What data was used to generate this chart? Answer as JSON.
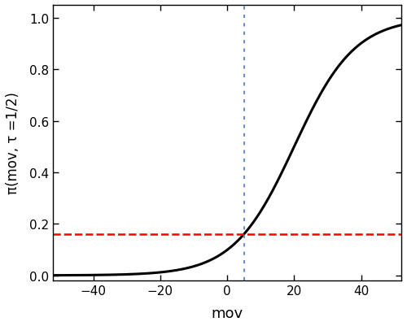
{
  "xlabel": "mov",
  "ylabel": "π(mov, τ =1/2)",
  "xlim": [
    -52,
    52
  ],
  "ylim": [
    -0.02,
    1.05
  ],
  "xticks": [
    -40,
    -20,
    0,
    20,
    40
  ],
  "yticks": [
    0.0,
    0.2,
    0.4,
    0.6,
    0.8,
    1.0
  ],
  "vline_x": 5,
  "vline_color": "#6B8EC4",
  "vline_style": "dotted",
  "hline_y": 0.16,
  "hline_color": "#FF0000",
  "hline_style": "dashed",
  "sigmoid_mu": 20.0,
  "sigmoid_scale": 9.05,
  "curve_color": "#000000",
  "curve_linewidth": 2.2,
  "background_color": "#FFFFFF",
  "figsize": [
    5.0,
    4.02
  ],
  "dpi": 100
}
